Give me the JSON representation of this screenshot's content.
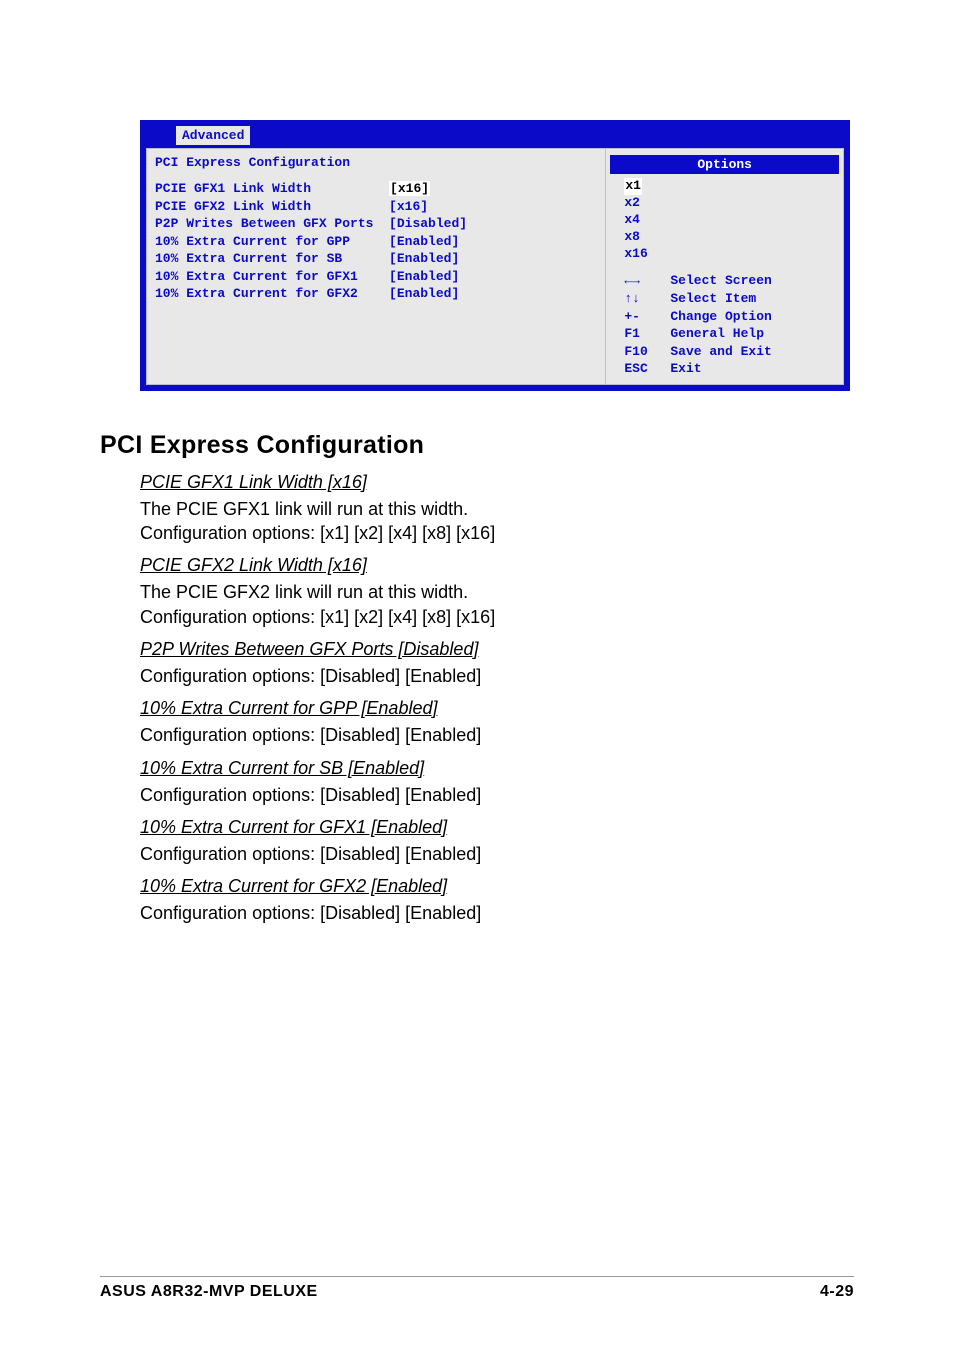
{
  "bios": {
    "tab": "Advanced",
    "title": "PCI Express Configuration",
    "options_header": "Options",
    "rows": [
      {
        "label": "PCIE GFX1 Link Width",
        "value": "[x16]",
        "selected": true
      },
      {
        "label": "PCIE GFX2 Link Width",
        "value": "[x16]",
        "selected": false
      },
      {
        "label": "P2P Writes Between GFX Ports",
        "value": "[Disabled]",
        "selected": false
      },
      {
        "label": "10% Extra Current for GPP",
        "value": "[Enabled]",
        "selected": false
      },
      {
        "label": "10% Extra Current for SB",
        "value": "[Enabled]",
        "selected": false
      },
      {
        "label": "10% Extra Current for GFX1",
        "value": "[Enabled]",
        "selected": false
      },
      {
        "label": "10% Extra Current for GFX2",
        "value": "[Enabled]",
        "selected": false
      }
    ],
    "options": [
      "x1",
      "x2",
      "x4",
      "x8",
      "x16"
    ],
    "option_selected_index": 0,
    "help": [
      {
        "key": "←→",
        "label": "Select Screen"
      },
      {
        "key": "↑↓",
        "label": "Select Item"
      },
      {
        "key": "+-",
        "label": "Change Option"
      },
      {
        "key": "F1",
        "label": "General Help"
      },
      {
        "key": "F10",
        "label": "Save and Exit"
      },
      {
        "key": "ESC",
        "label": "Exit"
      }
    ],
    "colors": {
      "frame_blue": "#0a0ac8",
      "panel_gray": "#e8e8e8",
      "highlight_white": "#ffffff",
      "text_blue": "#0a0ac8"
    }
  },
  "doc": {
    "heading": "PCI Express Configuration",
    "sections": [
      {
        "title": "PCIE GFX1 Link Width [x16]",
        "body": "The PCIE GFX1 link will run at this width.\nConfiguration options: [x1] [x2] [x4] [x8] [x16]"
      },
      {
        "title": "PCIE GFX2 Link Width [x16]",
        "body": "The PCIE GFX2 link will run at this width.\nConfiguration options: [x1] [x2] [x4] [x8] [x16]"
      },
      {
        "title": "P2P Writes Between GFX Ports [Disabled]",
        "body": "Configuration options: [Disabled] [Enabled]"
      },
      {
        "title": "10% Extra Current for GPP [Enabled]",
        "body": "Configuration options: [Disabled] [Enabled]"
      },
      {
        "title": "10% Extra Current for SB [Enabled]",
        "body": "Configuration options: [Disabled] [Enabled]"
      },
      {
        "title": "10% Extra Current for GFX1 [Enabled]",
        "body": "Configuration options: [Disabled] [Enabled]"
      },
      {
        "title": "10% Extra Current for GFX2 [Enabled]",
        "body": "Configuration options: [Disabled] [Enabled]"
      }
    ]
  },
  "footer": {
    "left": "ASUS A8R32-MVP DELUXE",
    "right": "4-29"
  }
}
